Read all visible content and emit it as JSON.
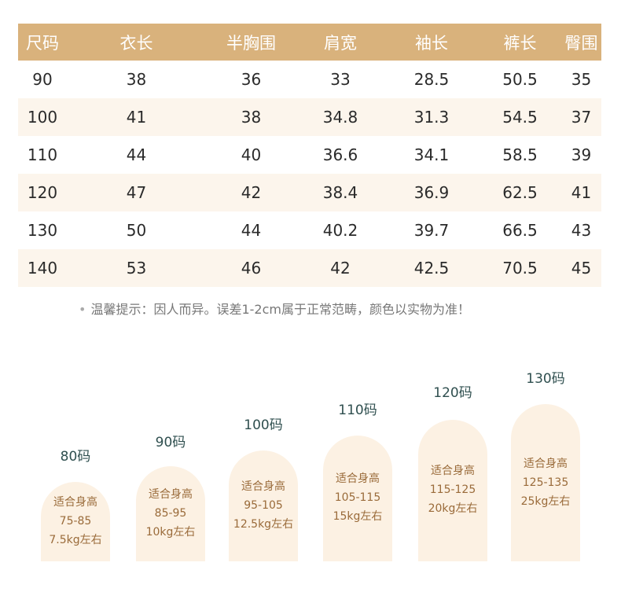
{
  "size_table": {
    "headers": [
      "尺码",
      "衣长",
      "半胸围",
      "肩宽",
      "袖长",
      "裤长",
      "臀围"
    ],
    "rows": [
      [
        "90",
        "38",
        "36",
        "33",
        "28.5",
        "50.5",
        "35"
      ],
      [
        "100",
        "41",
        "38",
        "34.8",
        "31.3",
        "54.5",
        "37"
      ],
      [
        "110",
        "44",
        "40",
        "36.6",
        "34.1",
        "58.5",
        "39"
      ],
      [
        "120",
        "47",
        "42",
        "38.4",
        "36.9",
        "62.5",
        "41"
      ],
      [
        "130",
        "50",
        "44",
        "40.2",
        "39.7",
        "66.5",
        "43"
      ],
      [
        "140",
        "53",
        "46",
        "42",
        "42.5",
        "70.5",
        "45"
      ]
    ]
  },
  "tip": {
    "dot": "•",
    "text": "温馨提示：因人而异。误差1-2cm属于正常范畴，颜色以实物为准！"
  },
  "height_guide": [
    {
      "size": "80码",
      "title": "适合身高",
      "height": "75-85",
      "weight": "7.5kg左右"
    },
    {
      "size": "90码",
      "title": "适合身高",
      "height": "85-95",
      "weight": "10kg左右"
    },
    {
      "size": "100码",
      "title": "适合身高",
      "height": "95-105",
      "weight": "12.5kg左右"
    },
    {
      "size": "110码",
      "title": "适合身高",
      "height": "105-115",
      "weight": "15kg左右"
    },
    {
      "size": "120码",
      "title": "适合身高",
      "height": "115-125",
      "weight": "20kg左右"
    },
    {
      "size": "130码",
      "title": "适合身高",
      "height": "125-135",
      "weight": "25kg左右"
    }
  ],
  "colors": {
    "header_bg": "#d9b27c",
    "alt_row_bg": "#fcf5ec",
    "bar_bg": "#fcf1e3",
    "bar_text": "#9a6b3a",
    "size_label": "#2f4f4f"
  }
}
